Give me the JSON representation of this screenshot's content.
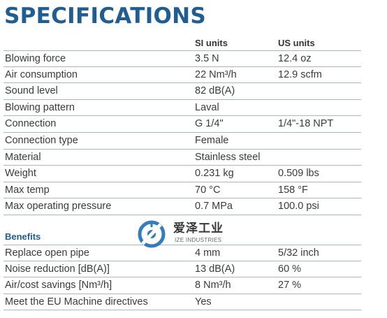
{
  "title": "SPECIFICATIONS",
  "columns": {
    "si": "SI units",
    "us": "US units"
  },
  "specs": [
    {
      "label": "Blowing force",
      "si": "3.5 N",
      "us": "12.4 oz"
    },
    {
      "label": "Air consumption",
      "si": "22 Nm³/h",
      "us": "12.9 scfm"
    },
    {
      "label": "Sound level",
      "si": "82 dB(A)",
      "us": ""
    },
    {
      "label": "Blowing pattern",
      "si": "Laval",
      "us": ""
    },
    {
      "label": "Connection",
      "si": "G 1/4\"",
      "us": "1/4\"-18 NPT"
    },
    {
      "label": "Connection type",
      "si": "Female",
      "us": ""
    },
    {
      "label": "Material",
      "si": "Stainless steel",
      "us": ""
    },
    {
      "label": "Weight",
      "si": "0.231 kg",
      "us": "0.509 lbs"
    },
    {
      "label": "Max temp",
      "si": "70 °C",
      "us": "158 °F"
    },
    {
      "label": "Max operating pressure",
      "si": "0.7 MPa",
      "us": "100.0 psi"
    }
  ],
  "benefits_heading": "Benefits",
  "benefits": [
    {
      "label": "Replace open pipe",
      "si": "4 mm",
      "us": "5/32 inch"
    },
    {
      "label": "Noise reduction [dB(A)]",
      "si": "13 dB(A)",
      "us": "60 %"
    },
    {
      "label": "Air/cost savings [Nm³/h]",
      "si": "8 Nm³/h",
      "us": "27 %"
    },
    {
      "label": "Meet the EU Machine directives",
      "si": "Yes",
      "us": ""
    }
  ],
  "watermark": {
    "cn": "爱泽工业",
    "en": "IZE INDUSTRIES",
    "color": "#1e6fb8"
  }
}
